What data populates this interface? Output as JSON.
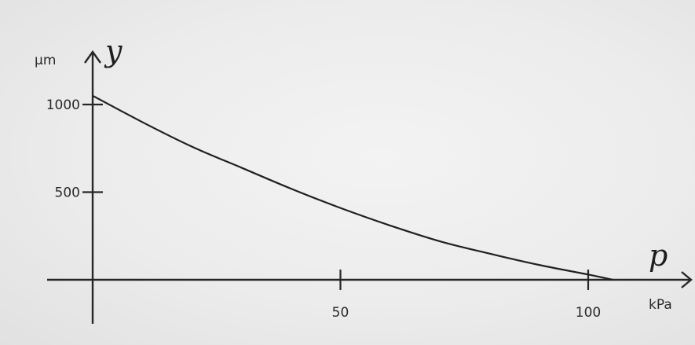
{
  "chart_data": {
    "type": "line",
    "title": "",
    "xlabel": "p",
    "ylabel": "y",
    "x_unit": "kPa",
    "y_unit": "µm",
    "xlim": [
      0,
      120
    ],
    "ylim": [
      0,
      1110
    ],
    "x_ticks": [
      50,
      100
    ],
    "y_ticks": [
      500,
      1000
    ],
    "grid": false,
    "legend": "none",
    "series": [
      {
        "x": [
          0,
          10,
          20,
          30,
          40,
          50,
          60,
          70,
          80,
          90,
          100,
          105
        ],
        "y": [
          1050,
          900,
          760,
          640,
          520,
          410,
          310,
          220,
          150,
          85,
          30,
          0
        ]
      }
    ]
  }
}
